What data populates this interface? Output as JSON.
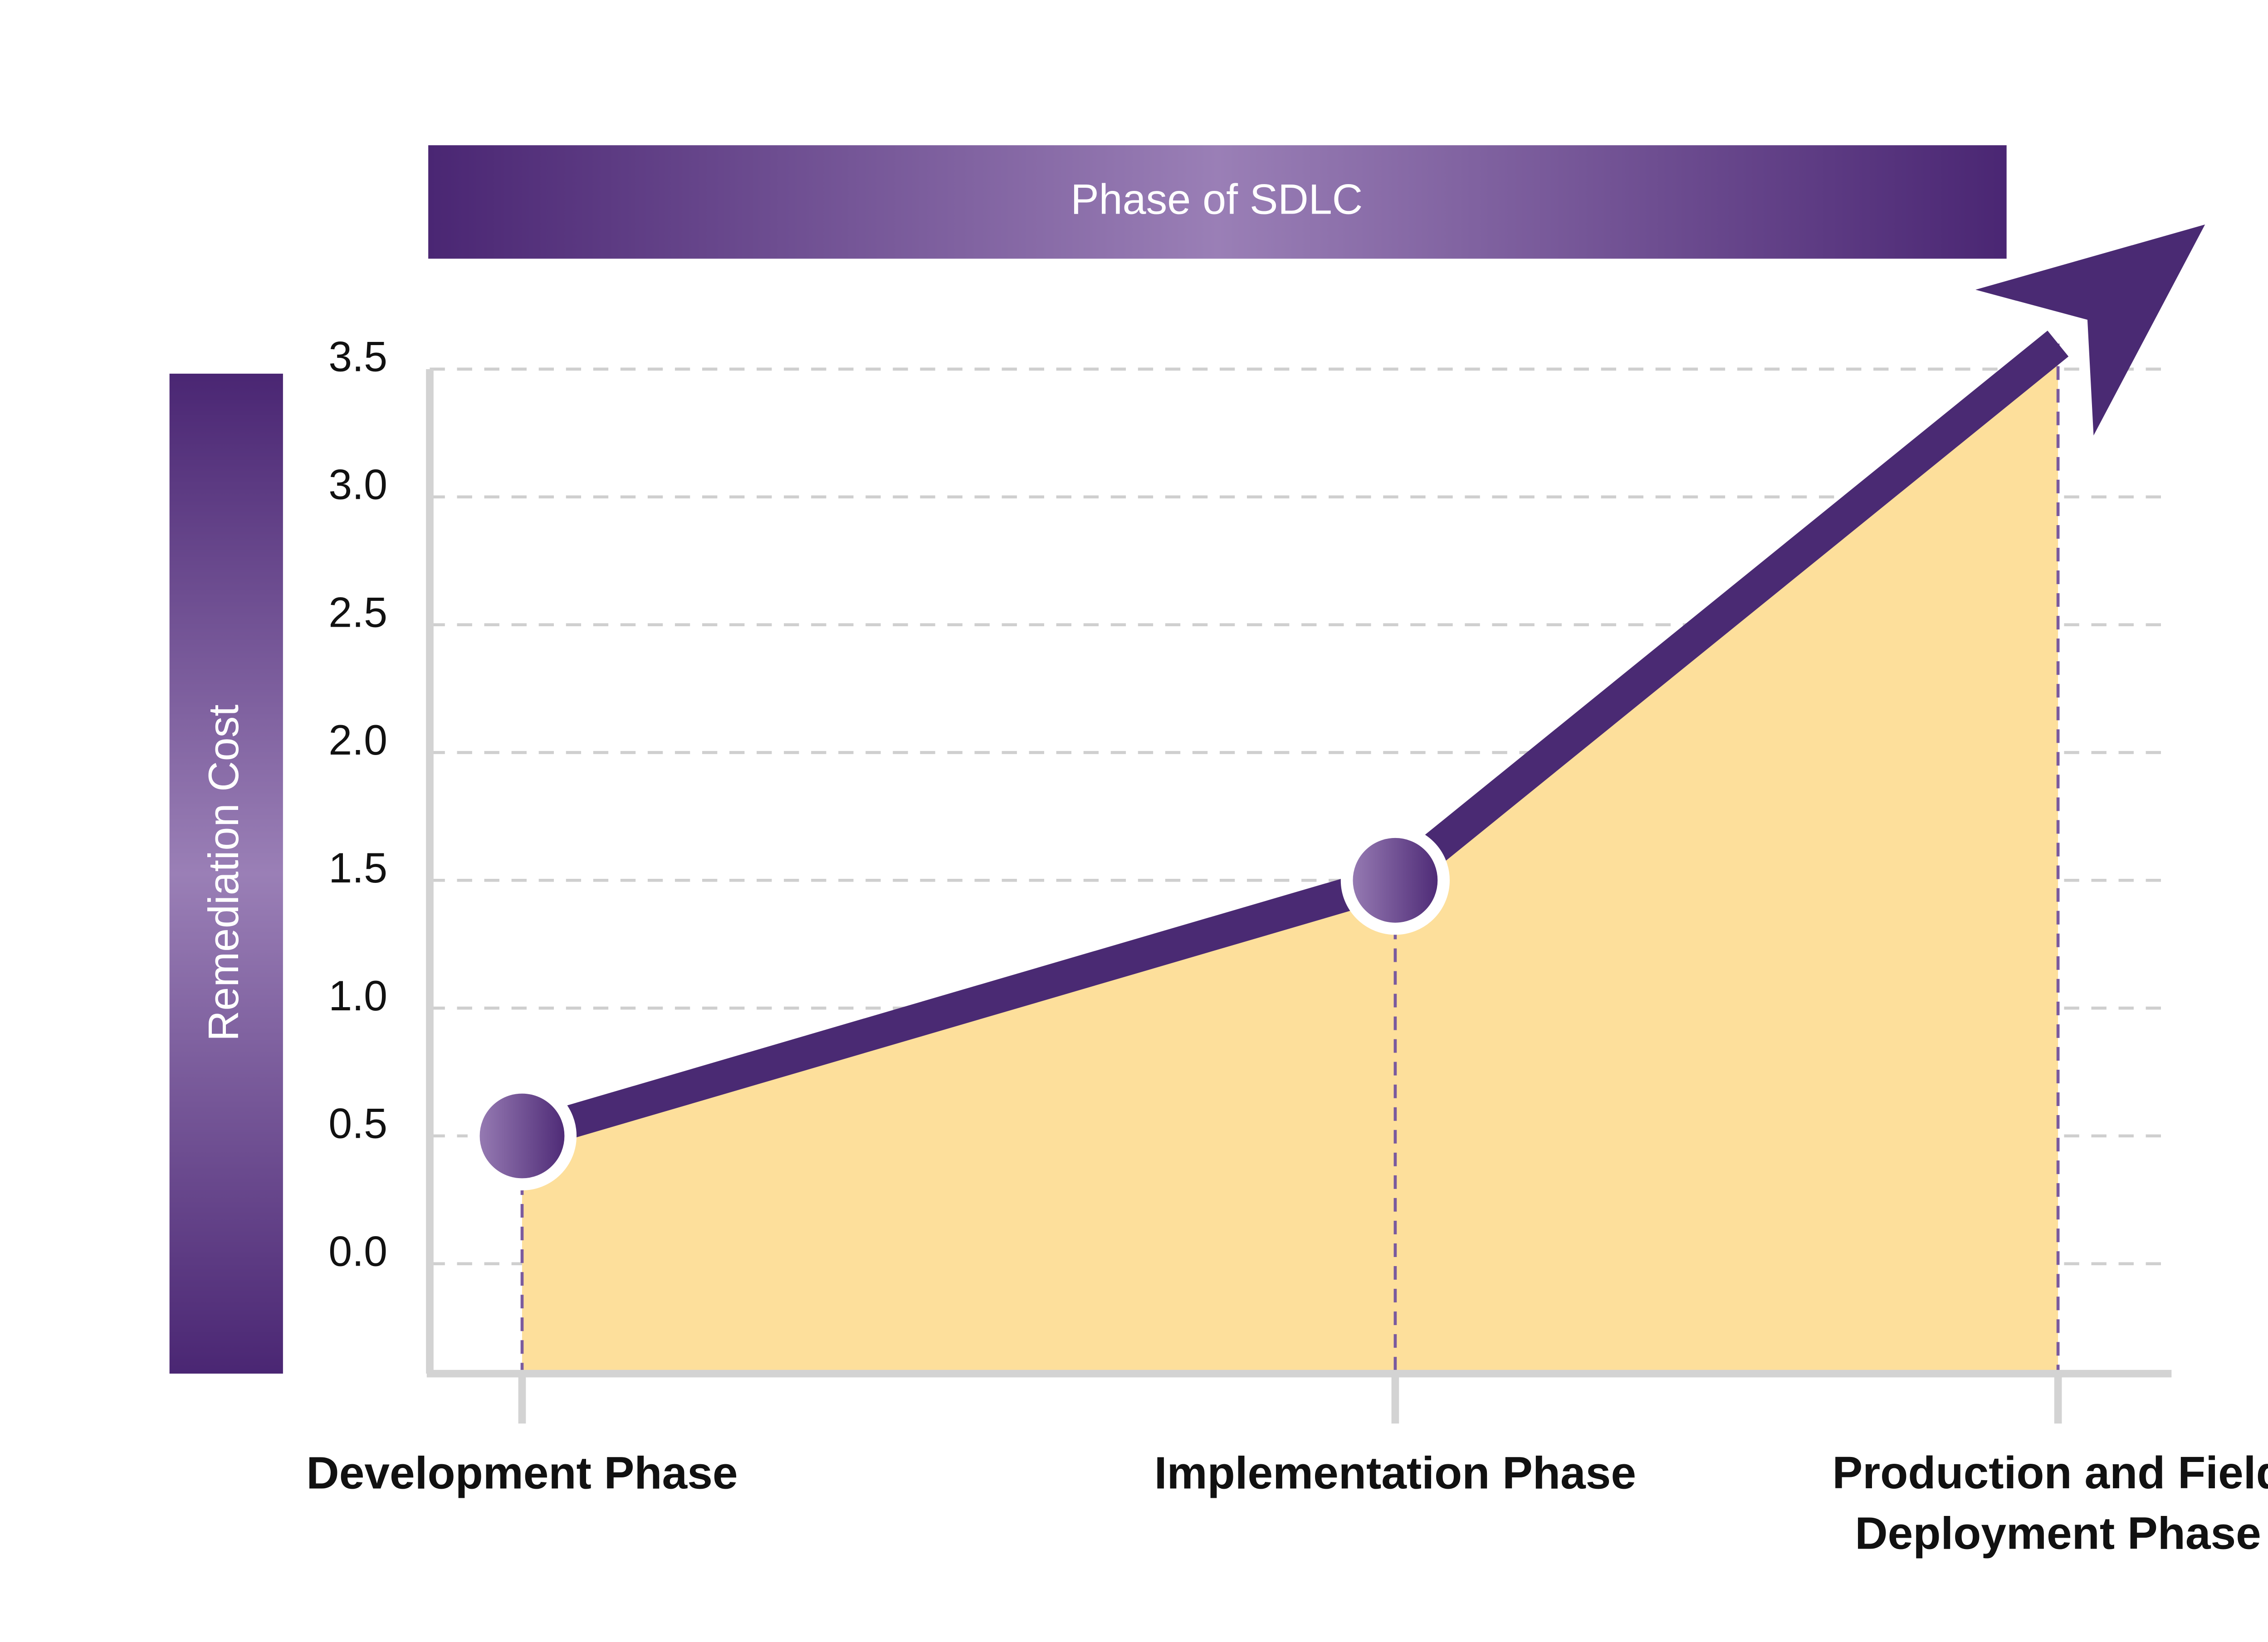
{
  "chart_data": {
    "type": "area",
    "title": "Phase of SDLC",
    "y_label": "Remediation Cost",
    "categories": [
      "Development Phase",
      "Implementation Phase",
      "Production and Field Deployment Phase"
    ],
    "values": [
      0.5,
      1.5,
      3.6
    ],
    "color": "#4a2a73",
    "fill_color": "#fddf9b",
    "ylim": [
      -0.43,
      3.5
    ],
    "yticks": [
      {
        "value": 0,
        "label": "0.0"
      },
      0.5,
      {
        "value": 1,
        "label": "1.0"
      },
      1.5,
      {
        "value": 2,
        "label": "2.0"
      },
      2.5,
      {
        "value": 3,
        "label": "3.0"
      },
      3.5
    ],
    "grid": true
  }
}
